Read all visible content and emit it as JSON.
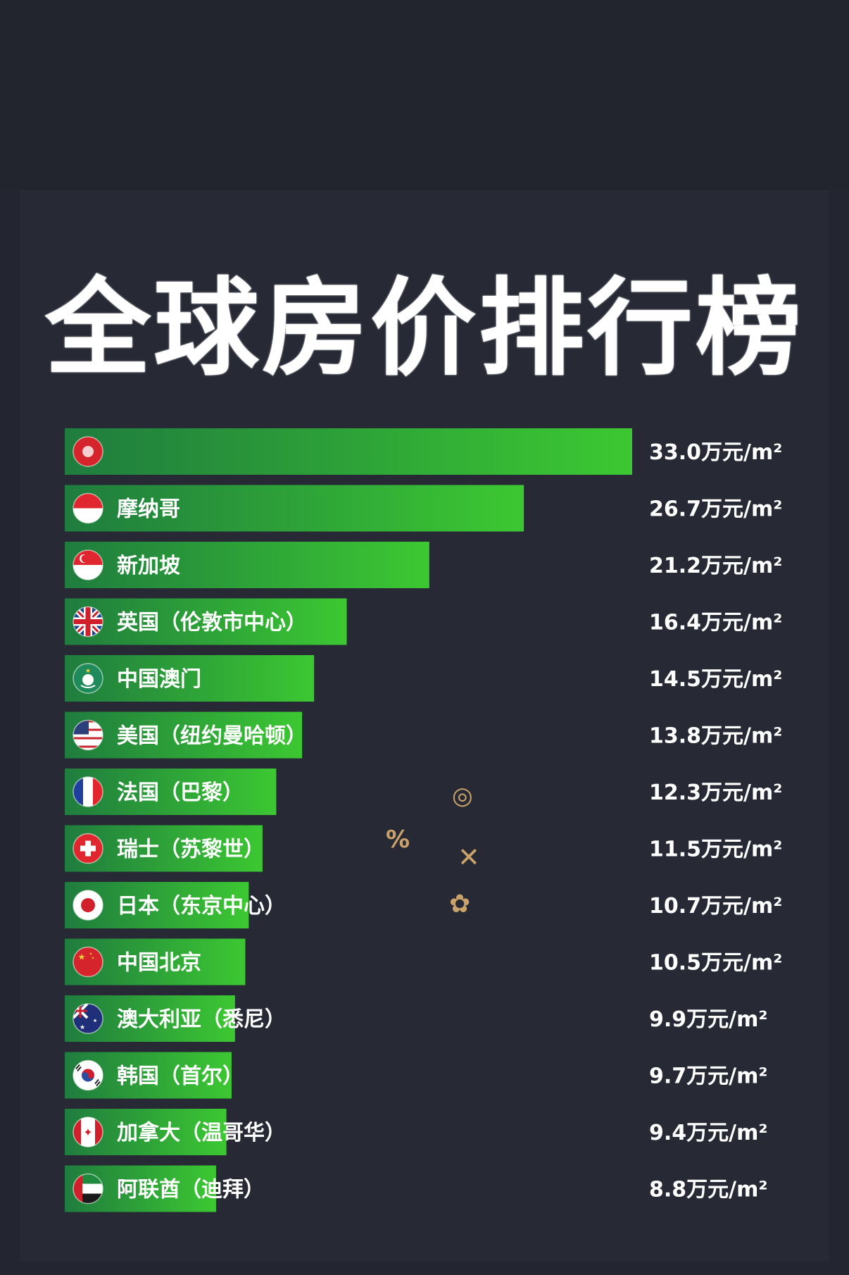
{
  "title": "全球房价排行榜",
  "colors": {
    "bar_start": "#1f7c3e",
    "bar_end": "#3cc832",
    "text": "#ffffff",
    "background": "#272a35"
  },
  "chart_data": {
    "type": "bar",
    "orientation": "horizontal",
    "title": "全球房价排行榜",
    "unit": "万元/m²",
    "xlim": [
      0,
      33.0
    ],
    "categories": [
      "",
      "摩纳哥",
      "新加坡",
      "英国（伦敦市中心）",
      "中国澳门",
      "美国（纽约曼哈顿）",
      "法国（巴黎）",
      "瑞士（苏黎世）",
      "日本（东京中心）",
      "中国北京",
      "澳大利亚（悉尼）",
      "韩国（首尔）",
      "加拿大（温哥华）",
      "阿联酋（迪拜）"
    ],
    "values": [
      33.0,
      26.7,
      21.2,
      16.4,
      14.5,
      13.8,
      12.3,
      11.5,
      10.7,
      10.5,
      9.9,
      9.7,
      9.4,
      8.8
    ],
    "value_labels": [
      "33.0万元/m²",
      "26.7万元/m²",
      "21.2万元/m²",
      "16.4万元/m²",
      "14.5万元/m²",
      "13.8万元/m²",
      "12.3万元/m²",
      "11.5万元/m²",
      "10.7万元/m²",
      "10.5万元/m²",
      "9.9万元/m²",
      "9.7万元/m²",
      "9.4万元/m²",
      "8.8万元/m²"
    ],
    "flags": [
      "hongkong-flag-icon",
      "monaco-flag-icon",
      "singapore-flag-icon",
      "uk-flag-icon",
      "macau-flag-icon",
      "usa-flag-icon",
      "france-flag-icon",
      "switzerland-flag-icon",
      "japan-flag-icon",
      "china-flag-icon",
      "australia-flag-icon",
      "korea-flag-icon",
      "canada-flag-icon",
      "uae-flag-icon"
    ],
    "grid": false,
    "legend": "none"
  }
}
